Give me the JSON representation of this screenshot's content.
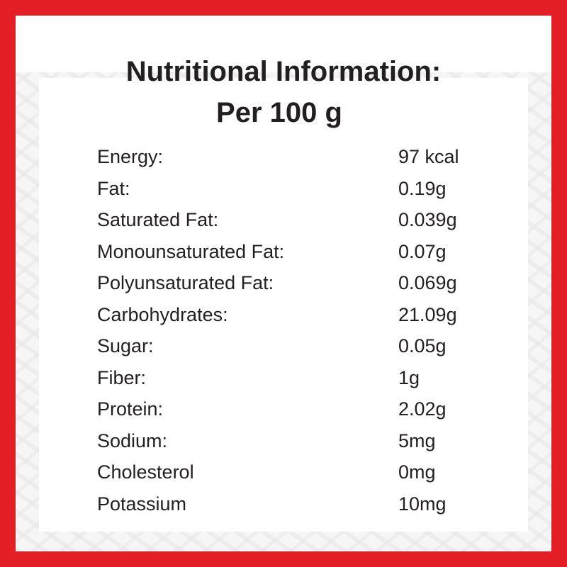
{
  "colors": {
    "border": "#e31e24",
    "text": "#231f20"
  },
  "title_line1": "Nutritional Information:",
  "title_line2": "Per 100 g",
  "rows": [
    {
      "label": "Energy:",
      "value": "97 kcal"
    },
    {
      "label": "Fat:",
      "value": "0.19g"
    },
    {
      "label": "Saturated Fat:",
      "value": "0.039g"
    },
    {
      "label": "Monounsaturated Fat:",
      "value": "0.07g"
    },
    {
      "label": "Polyunsaturated Fat:",
      "value": "0.069g"
    },
    {
      "label": "Carbohydrates:",
      "value": "21.09g"
    },
    {
      "label": "Sugar:",
      "value": "0.05g"
    },
    {
      "label": "Fiber:",
      "value": "1g"
    },
    {
      "label": "Protein:",
      "value": "2.02g"
    },
    {
      "label": "Sodium:",
      "value": "5mg"
    },
    {
      "label": "Cholesterol",
      "value": "0mg"
    },
    {
      "label": "Potassium",
      "value": "10mg"
    }
  ]
}
